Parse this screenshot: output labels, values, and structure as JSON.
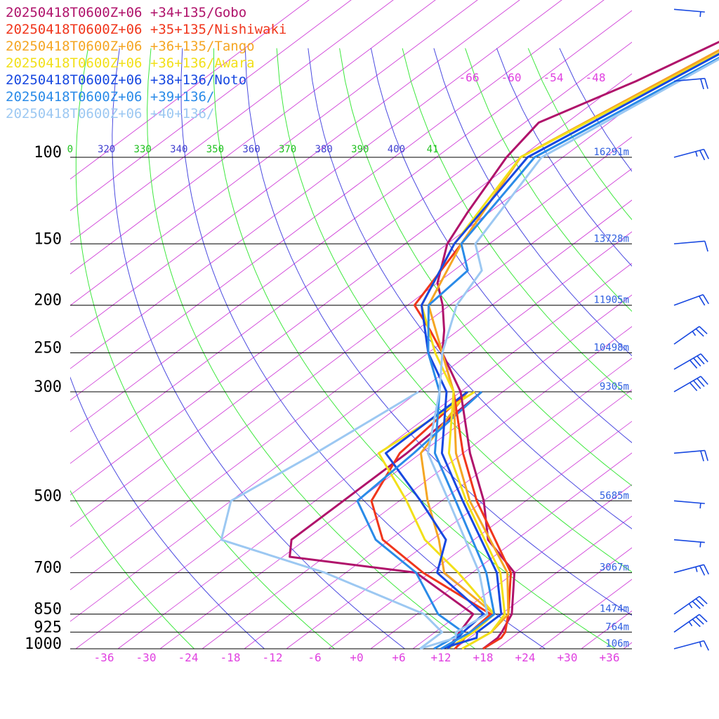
{
  "legend": [
    {
      "label": "20250418T0600Z+06 +34+135/Gobo",
      "color": "#b0136b"
    },
    {
      "label": "20250418T0600Z+06 +35+135/Nishiwaki",
      "color": "#f0361c"
    },
    {
      "label": "20250418T0600Z+06 +36+135/Tango",
      "color": "#f5a623"
    },
    {
      "label": "20250418T0600Z+06 +36+136/Awara",
      "color": "#f2e01a"
    },
    {
      "label": "20250418T0600Z+06 +38+136/Noto",
      "color": "#1748e0"
    },
    {
      "label": "20250418T0600Z+06 +39+136/",
      "color": "#2a8be8"
    },
    {
      "label": "20250418T0600Z+06 +40+136/",
      "color": "#9cc8f2"
    }
  ],
  "chart_data": {
    "type": "line",
    "chart_kind": "skew-T log-P sounding",
    "pressure_levels": [
      {
        "label": "100",
        "p": 100
      },
      {
        "label": "150",
        "p": 150
      },
      {
        "label": "200",
        "p": 200
      },
      {
        "label": "250",
        "p": 250
      },
      {
        "label": "300",
        "p": 300
      },
      {
        "label": "500",
        "p": 500
      },
      {
        "label": "700",
        "p": 700
      },
      {
        "label": "850",
        "p": 850
      },
      {
        "label": "925",
        "p": 925
      },
      {
        "label": "1000",
        "p": 1000
      }
    ],
    "heights": [
      {
        "p": 100,
        "label": "16291m"
      },
      {
        "p": 150,
        "label": "13728m"
      },
      {
        "p": 200,
        "label": "11905m"
      },
      {
        "p": 250,
        "label": "10498m"
      },
      {
        "p": 300,
        "label": "9305m"
      },
      {
        "p": 500,
        "label": "5685m"
      },
      {
        "p": 700,
        "label": "3067m"
      },
      {
        "p": 850,
        "label": "1474m"
      },
      {
        "p": 925,
        "label": "764m"
      },
      {
        "p": 1000,
        "label": "106m"
      }
    ],
    "temp_ticks": [
      "-36",
      "-30",
      "-24",
      "-18",
      "-12",
      "-6",
      "+0",
      "+6",
      "+12",
      "+18",
      "+24",
      "+30",
      "+36"
    ],
    "temp_tick_values": [
      -36,
      -30,
      -24,
      -18,
      -12,
      -6,
      0,
      6,
      12,
      18,
      24,
      30,
      36
    ],
    "upper_temp_labels": [
      {
        "label": "-66",
        "t": -66
      },
      {
        "label": "-60",
        "t": -60
      },
      {
        "label": "-54",
        "t": -54
      },
      {
        "label": "-48",
        "t": -48
      }
    ],
    "theta_labels": [
      {
        "label": "0",
        "color": "#20c020"
      },
      {
        "label": "320",
        "color": "#4040d0"
      },
      {
        "label": "330",
        "color": "#20c020"
      },
      {
        "label": "340",
        "color": "#4040d0"
      },
      {
        "label": "350",
        "color": "#20c020"
      },
      {
        "label": "360",
        "color": "#4040d0"
      },
      {
        "label": "370",
        "color": "#20c020"
      },
      {
        "label": "380",
        "color": "#4040d0"
      },
      {
        "label": "390",
        "color": "#20c020"
      },
      {
        "label": "400",
        "color": "#4040d0"
      },
      {
        "label": "41",
        "color": "#20c020"
      }
    ],
    "series": [
      {
        "name": "20250418T0600Z+06 +34+135/Gobo",
        "color": "#b0136b",
        "temperature": [
          [
            1000,
            18
          ],
          [
            950,
            18
          ],
          [
            925,
            17.5
          ],
          [
            850,
            15.5
          ],
          [
            700,
            8
          ],
          [
            600,
            -2
          ],
          [
            500,
            -10
          ],
          [
            400,
            -21
          ],
          [
            300,
            -34
          ],
          [
            250,
            -44
          ],
          [
            225,
            -48
          ],
          [
            200,
            -53
          ],
          [
            180,
            -58
          ],
          [
            150,
            -64
          ],
          [
            130,
            -67
          ],
          [
            100,
            -72
          ],
          [
            85,
            -74
          ],
          [
            70,
            -68
          ],
          [
            50,
            -60
          ],
          [
            30,
            -55
          ]
        ],
        "dewpoint": [
          [
            1000,
            13
          ],
          [
            925,
            11.5
          ],
          [
            850,
            10
          ],
          [
            800,
            5
          ],
          [
            700,
            -6
          ],
          [
            650,
            -27
          ],
          [
            600,
            -30
          ],
          [
            500,
            -30
          ],
          [
            400,
            -30
          ],
          [
            300,
            -31
          ]
        ]
      },
      {
        "name": "20250418T0600Z+06 +35+135/Nishiwaki",
        "color": "#f0361c",
        "temperature": [
          [
            1000,
            18
          ],
          [
            950,
            18.5
          ],
          [
            925,
            18
          ],
          [
            850,
            15
          ],
          [
            700,
            7.5
          ],
          [
            500,
            -11
          ],
          [
            400,
            -22
          ],
          [
            300,
            -35
          ],
          [
            250,
            -44
          ],
          [
            225,
            -50
          ],
          [
            200,
            -57
          ],
          [
            150,
            -62
          ],
          [
            100,
            -70
          ],
          [
            50,
            -59
          ],
          [
            30,
            -54
          ]
        ],
        "dewpoint": [
          [
            1000,
            14
          ],
          [
            925,
            13
          ],
          [
            850,
            12.5
          ],
          [
            700,
            -5
          ],
          [
            600,
            -17
          ],
          [
            500,
            -26
          ],
          [
            400,
            -31
          ],
          [
            300,
            -33
          ]
        ]
      },
      {
        "name": "20250418T0600Z+06 +36+135/Tango",
        "color": "#f5a623",
        "temperature": [
          [
            1000,
            15
          ],
          [
            925,
            16
          ],
          [
            850,
            15
          ],
          [
            700,
            7
          ],
          [
            500,
            -12
          ],
          [
            400,
            -23
          ],
          [
            300,
            -35
          ],
          [
            250,
            -44
          ],
          [
            200,
            -55
          ],
          [
            150,
            -62
          ],
          [
            100,
            -70
          ],
          [
            50,
            -59
          ],
          [
            30,
            -53
          ]
        ],
        "dewpoint": [
          [
            1000,
            12
          ],
          [
            925,
            13
          ],
          [
            850,
            13
          ],
          [
            700,
            -2
          ],
          [
            600,
            -9
          ],
          [
            500,
            -18
          ],
          [
            400,
            -28
          ],
          [
            300,
            -33
          ]
        ]
      },
      {
        "name": "20250418T0600Z+06 +36+136/Awara",
        "color": "#f2e01a",
        "temperature": [
          [
            1000,
            15
          ],
          [
            925,
            16
          ],
          [
            850,
            14.5
          ],
          [
            700,
            6
          ],
          [
            500,
            -12.5
          ],
          [
            400,
            -24
          ],
          [
            300,
            -35
          ],
          [
            250,
            -45
          ],
          [
            200,
            -56
          ],
          [
            150,
            -63
          ],
          [
            100,
            -70
          ],
          [
            50,
            -58
          ],
          [
            30,
            -52
          ]
        ],
        "dewpoint": [
          [
            1000,
            13
          ],
          [
            925,
            13.5
          ],
          [
            850,
            13
          ],
          [
            700,
            0
          ],
          [
            600,
            -11
          ],
          [
            500,
            -21
          ],
          [
            400,
            -34
          ],
          [
            300,
            -32
          ]
        ]
      },
      {
        "name": "20250418T0600Z+06 +38+136/Noto",
        "color": "#1748e0",
        "temperature": [
          [
            1000,
            12
          ],
          [
            950,
            15
          ],
          [
            925,
            14
          ],
          [
            850,
            14
          ],
          [
            700,
            5.5
          ],
          [
            500,
            -13
          ],
          [
            400,
            -25
          ],
          [
            300,
            -36
          ],
          [
            250,
            -46
          ],
          [
            200,
            -56
          ],
          [
            150,
            -63
          ],
          [
            100,
            -69
          ],
          [
            50,
            -58
          ],
          [
            30,
            -52
          ]
        ],
        "dewpoint": [
          [
            1000,
            13
          ],
          [
            925,
            12
          ],
          [
            850,
            11.5
          ],
          [
            700,
            -3
          ],
          [
            600,
            -8
          ],
          [
            500,
            -19
          ],
          [
            400,
            -33
          ],
          [
            300,
            -33
          ]
        ]
      },
      {
        "name": "20250418T0600Z+06 +39+136/",
        "color": "#2a8be8",
        "temperature": [
          [
            1000,
            12
          ],
          [
            925,
            13
          ],
          [
            850,
            13
          ],
          [
            700,
            4
          ],
          [
            500,
            -14
          ],
          [
            400,
            -26
          ],
          [
            300,
            -37
          ],
          [
            250,
            -46
          ],
          [
            200,
            -55
          ],
          [
            170,
            -56
          ],
          [
            150,
            -62
          ],
          [
            100,
            -68
          ],
          [
            50,
            -57
          ],
          [
            30,
            -52
          ]
        ],
        "dewpoint": [
          [
            1000,
            11
          ],
          [
            925,
            12
          ],
          [
            850,
            5
          ],
          [
            700,
            -6
          ],
          [
            600,
            -18
          ],
          [
            500,
            -28
          ],
          [
            400,
            -29
          ],
          [
            300,
            -31
          ]
        ]
      },
      {
        "name": "20250418T0600Z+06 +40+136/",
        "color": "#9cc8f2",
        "temperature": [
          [
            1000,
            9
          ],
          [
            950,
            12
          ],
          [
            925,
            11
          ],
          [
            850,
            12
          ],
          [
            700,
            3
          ],
          [
            500,
            -15
          ],
          [
            400,
            -27
          ],
          [
            300,
            -37
          ],
          [
            250,
            -44
          ],
          [
            200,
            -51
          ],
          [
            170,
            -54
          ],
          [
            150,
            -60
          ],
          [
            100,
            -67
          ],
          [
            50,
            -57
          ],
          [
            30,
            -51
          ]
        ],
        "dewpoint": [
          [
            1000,
            9
          ],
          [
            925,
            9
          ],
          [
            850,
            3
          ],
          [
            700,
            -19
          ],
          [
            600,
            -40
          ],
          [
            500,
            -46
          ],
          [
            400,
            -43
          ],
          [
            300,
            -40
          ]
        ]
      }
    ],
    "wind_barbs": [
      {
        "p": 1000,
        "dir": 255,
        "speed": 15
      },
      {
        "p": 925,
        "dir": 235,
        "speed": 35
      },
      {
        "p": 850,
        "dir": 235,
        "speed": 35
      },
      {
        "p": 700,
        "dir": 255,
        "speed": 25
      },
      {
        "p": 600,
        "dir": 275,
        "speed": 5
      },
      {
        "p": 500,
        "dir": 275,
        "speed": 5
      },
      {
        "p": 400,
        "dir": 265,
        "speed": 20
      },
      {
        "p": 300,
        "dir": 240,
        "speed": 40
      },
      {
        "p": 270,
        "dir": 240,
        "speed": 40
      },
      {
        "p": 240,
        "dir": 235,
        "speed": 25
      },
      {
        "p": 200,
        "dir": 250,
        "speed": 20
      },
      {
        "p": 150,
        "dir": 265,
        "speed": 10
      },
      {
        "p": 100,
        "dir": 255,
        "speed": 25
      },
      {
        "p": 70,
        "dir": 265,
        "speed": 20
      },
      {
        "p": 50,
        "dir": 275,
        "speed": 5
      }
    ]
  }
}
